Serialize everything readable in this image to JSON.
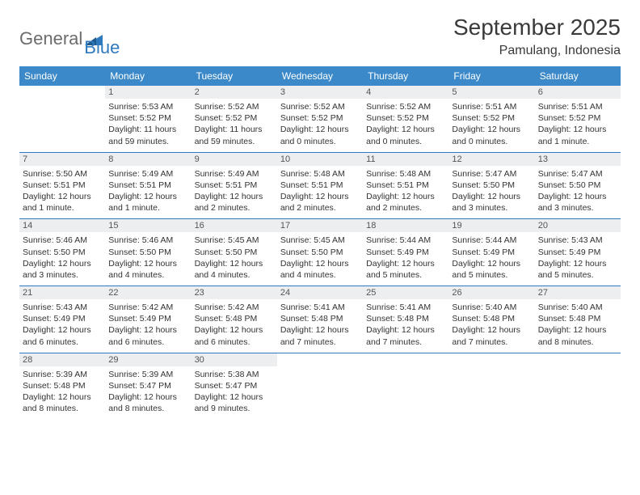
{
  "brand": {
    "word1": "General",
    "word2": "Blue"
  },
  "title": "September 2025",
  "location": "Pamulang, Indonesia",
  "colors": {
    "header_bg": "#3b89c9",
    "header_text": "#ffffff",
    "week_divider": "#2f7abf",
    "daynum_bg": "#eceef0",
    "body_text": "#333333",
    "logo_gray": "#6b6b6b",
    "logo_blue": "#2f7abf",
    "page_bg": "#ffffff"
  },
  "day_names": [
    "Sunday",
    "Monday",
    "Tuesday",
    "Wednesday",
    "Thursday",
    "Friday",
    "Saturday"
  ],
  "weeks": [
    [
      {
        "n": "",
        "empty": true
      },
      {
        "n": "1",
        "sunrise": "Sunrise: 5:53 AM",
        "sunset": "Sunset: 5:52 PM",
        "day1": "Daylight: 11 hours",
        "day2": "and 59 minutes."
      },
      {
        "n": "2",
        "sunrise": "Sunrise: 5:52 AM",
        "sunset": "Sunset: 5:52 PM",
        "day1": "Daylight: 11 hours",
        "day2": "and 59 minutes."
      },
      {
        "n": "3",
        "sunrise": "Sunrise: 5:52 AM",
        "sunset": "Sunset: 5:52 PM",
        "day1": "Daylight: 12 hours",
        "day2": "and 0 minutes."
      },
      {
        "n": "4",
        "sunrise": "Sunrise: 5:52 AM",
        "sunset": "Sunset: 5:52 PM",
        "day1": "Daylight: 12 hours",
        "day2": "and 0 minutes."
      },
      {
        "n": "5",
        "sunrise": "Sunrise: 5:51 AM",
        "sunset": "Sunset: 5:52 PM",
        "day1": "Daylight: 12 hours",
        "day2": "and 0 minutes."
      },
      {
        "n": "6",
        "sunrise": "Sunrise: 5:51 AM",
        "sunset": "Sunset: 5:52 PM",
        "day1": "Daylight: 12 hours",
        "day2": "and 1 minute."
      }
    ],
    [
      {
        "n": "7",
        "sunrise": "Sunrise: 5:50 AM",
        "sunset": "Sunset: 5:51 PM",
        "day1": "Daylight: 12 hours",
        "day2": "and 1 minute."
      },
      {
        "n": "8",
        "sunrise": "Sunrise: 5:49 AM",
        "sunset": "Sunset: 5:51 PM",
        "day1": "Daylight: 12 hours",
        "day2": "and 1 minute."
      },
      {
        "n": "9",
        "sunrise": "Sunrise: 5:49 AM",
        "sunset": "Sunset: 5:51 PM",
        "day1": "Daylight: 12 hours",
        "day2": "and 2 minutes."
      },
      {
        "n": "10",
        "sunrise": "Sunrise: 5:48 AM",
        "sunset": "Sunset: 5:51 PM",
        "day1": "Daylight: 12 hours",
        "day2": "and 2 minutes."
      },
      {
        "n": "11",
        "sunrise": "Sunrise: 5:48 AM",
        "sunset": "Sunset: 5:51 PM",
        "day1": "Daylight: 12 hours",
        "day2": "and 2 minutes."
      },
      {
        "n": "12",
        "sunrise": "Sunrise: 5:47 AM",
        "sunset": "Sunset: 5:50 PM",
        "day1": "Daylight: 12 hours",
        "day2": "and 3 minutes."
      },
      {
        "n": "13",
        "sunrise": "Sunrise: 5:47 AM",
        "sunset": "Sunset: 5:50 PM",
        "day1": "Daylight: 12 hours",
        "day2": "and 3 minutes."
      }
    ],
    [
      {
        "n": "14",
        "sunrise": "Sunrise: 5:46 AM",
        "sunset": "Sunset: 5:50 PM",
        "day1": "Daylight: 12 hours",
        "day2": "and 3 minutes."
      },
      {
        "n": "15",
        "sunrise": "Sunrise: 5:46 AM",
        "sunset": "Sunset: 5:50 PM",
        "day1": "Daylight: 12 hours",
        "day2": "and 4 minutes."
      },
      {
        "n": "16",
        "sunrise": "Sunrise: 5:45 AM",
        "sunset": "Sunset: 5:50 PM",
        "day1": "Daylight: 12 hours",
        "day2": "and 4 minutes."
      },
      {
        "n": "17",
        "sunrise": "Sunrise: 5:45 AM",
        "sunset": "Sunset: 5:50 PM",
        "day1": "Daylight: 12 hours",
        "day2": "and 4 minutes."
      },
      {
        "n": "18",
        "sunrise": "Sunrise: 5:44 AM",
        "sunset": "Sunset: 5:49 PM",
        "day1": "Daylight: 12 hours",
        "day2": "and 5 minutes."
      },
      {
        "n": "19",
        "sunrise": "Sunrise: 5:44 AM",
        "sunset": "Sunset: 5:49 PM",
        "day1": "Daylight: 12 hours",
        "day2": "and 5 minutes."
      },
      {
        "n": "20",
        "sunrise": "Sunrise: 5:43 AM",
        "sunset": "Sunset: 5:49 PM",
        "day1": "Daylight: 12 hours",
        "day2": "and 5 minutes."
      }
    ],
    [
      {
        "n": "21",
        "sunrise": "Sunrise: 5:43 AM",
        "sunset": "Sunset: 5:49 PM",
        "day1": "Daylight: 12 hours",
        "day2": "and 6 minutes."
      },
      {
        "n": "22",
        "sunrise": "Sunrise: 5:42 AM",
        "sunset": "Sunset: 5:49 PM",
        "day1": "Daylight: 12 hours",
        "day2": "and 6 minutes."
      },
      {
        "n": "23",
        "sunrise": "Sunrise: 5:42 AM",
        "sunset": "Sunset: 5:48 PM",
        "day1": "Daylight: 12 hours",
        "day2": "and 6 minutes."
      },
      {
        "n": "24",
        "sunrise": "Sunrise: 5:41 AM",
        "sunset": "Sunset: 5:48 PM",
        "day1": "Daylight: 12 hours",
        "day2": "and 7 minutes."
      },
      {
        "n": "25",
        "sunrise": "Sunrise: 5:41 AM",
        "sunset": "Sunset: 5:48 PM",
        "day1": "Daylight: 12 hours",
        "day2": "and 7 minutes."
      },
      {
        "n": "26",
        "sunrise": "Sunrise: 5:40 AM",
        "sunset": "Sunset: 5:48 PM",
        "day1": "Daylight: 12 hours",
        "day2": "and 7 minutes."
      },
      {
        "n": "27",
        "sunrise": "Sunrise: 5:40 AM",
        "sunset": "Sunset: 5:48 PM",
        "day1": "Daylight: 12 hours",
        "day2": "and 8 minutes."
      }
    ],
    [
      {
        "n": "28",
        "sunrise": "Sunrise: 5:39 AM",
        "sunset": "Sunset: 5:48 PM",
        "day1": "Daylight: 12 hours",
        "day2": "and 8 minutes."
      },
      {
        "n": "29",
        "sunrise": "Sunrise: 5:39 AM",
        "sunset": "Sunset: 5:47 PM",
        "day1": "Daylight: 12 hours",
        "day2": "and 8 minutes."
      },
      {
        "n": "30",
        "sunrise": "Sunrise: 5:38 AM",
        "sunset": "Sunset: 5:47 PM",
        "day1": "Daylight: 12 hours",
        "day2": "and 9 minutes."
      },
      {
        "n": "",
        "empty": true
      },
      {
        "n": "",
        "empty": true
      },
      {
        "n": "",
        "empty": true
      },
      {
        "n": "",
        "empty": true
      }
    ]
  ]
}
